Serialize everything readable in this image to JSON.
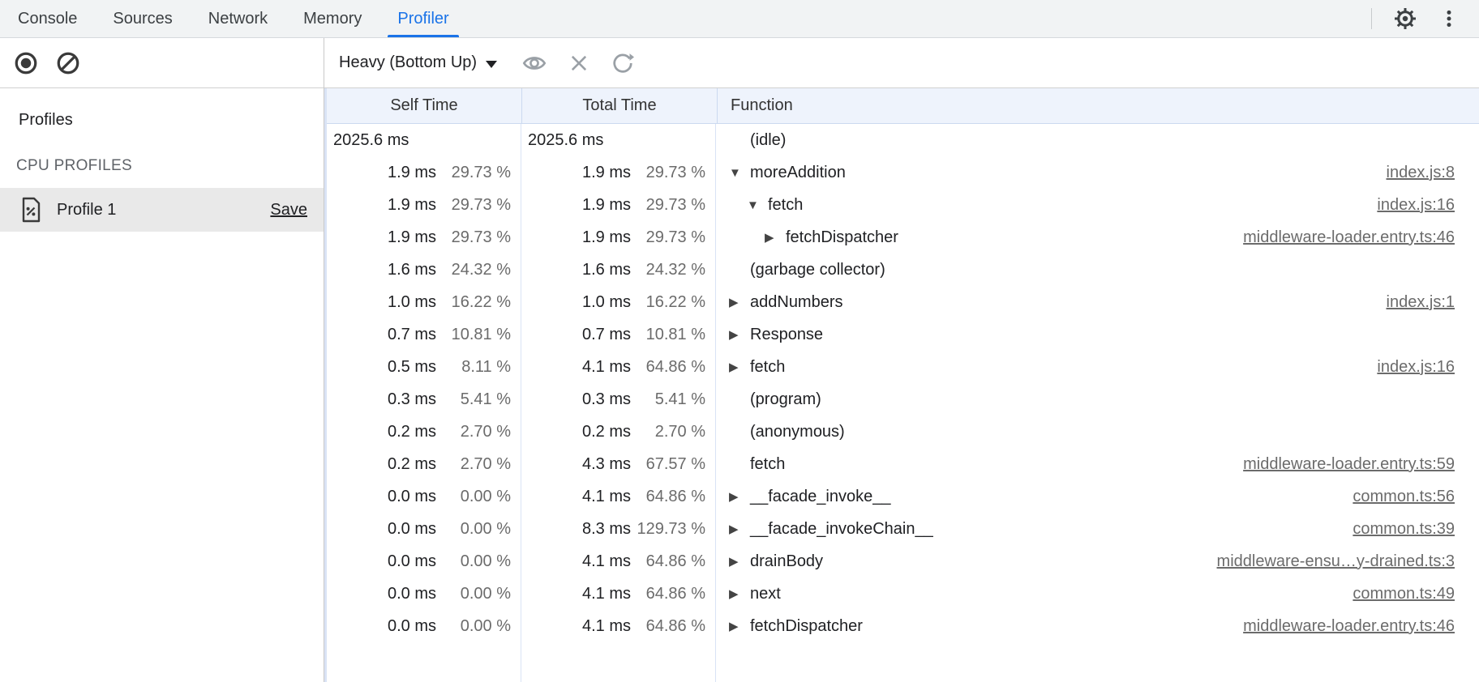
{
  "tabbar": {
    "tabs": [
      {
        "label": "Console",
        "active": false
      },
      {
        "label": "Sources",
        "active": false
      },
      {
        "label": "Network",
        "active": false
      },
      {
        "label": "Memory",
        "active": false
      },
      {
        "label": "Profiler",
        "active": true
      }
    ]
  },
  "sidebar": {
    "profiles_label": "Profiles",
    "section_label": "CPU PROFILES",
    "profile": {
      "name": "Profile 1",
      "save_label": "Save",
      "selected": true
    }
  },
  "toolbar": {
    "view_mode": "Heavy (Bottom Up)"
  },
  "table": {
    "columns": [
      "Self Time",
      "Total Time",
      "Function"
    ],
    "rows": [
      {
        "self_ms": "2025.6 ms",
        "self_pct": "",
        "total_ms": "2025.6 ms",
        "total_pct": "",
        "fn": "(idle)",
        "arrow": "none",
        "level": 0,
        "link": "",
        "wide": true
      },
      {
        "self_ms": "1.9 ms",
        "self_pct": "29.73 %",
        "total_ms": "1.9 ms",
        "total_pct": "29.73 %",
        "fn": "moreAddition",
        "arrow": "expanded",
        "level": 0,
        "link": "index.js:8"
      },
      {
        "self_ms": "1.9 ms",
        "self_pct": "29.73 %",
        "total_ms": "1.9 ms",
        "total_pct": "29.73 %",
        "fn": "fetch",
        "arrow": "expanded",
        "level": 1,
        "link": "index.js:16"
      },
      {
        "self_ms": "1.9 ms",
        "self_pct": "29.73 %",
        "total_ms": "1.9 ms",
        "total_pct": "29.73 %",
        "fn": "fetchDispatcher",
        "arrow": "collapsed",
        "level": 2,
        "link": "middleware-loader.entry.ts:46"
      },
      {
        "self_ms": "1.6 ms",
        "self_pct": "24.32 %",
        "total_ms": "1.6 ms",
        "total_pct": "24.32 %",
        "fn": "(garbage collector)",
        "arrow": "none",
        "level": 0,
        "link": ""
      },
      {
        "self_ms": "1.0 ms",
        "self_pct": "16.22 %",
        "total_ms": "1.0 ms",
        "total_pct": "16.22 %",
        "fn": "addNumbers",
        "arrow": "collapsed",
        "level": 0,
        "link": "index.js:1"
      },
      {
        "self_ms": "0.7 ms",
        "self_pct": "10.81 %",
        "total_ms": "0.7 ms",
        "total_pct": "10.81 %",
        "fn": "Response",
        "arrow": "collapsed",
        "level": 0,
        "link": ""
      },
      {
        "self_ms": "0.5 ms",
        "self_pct": "8.11 %",
        "total_ms": "4.1 ms",
        "total_pct": "64.86 %",
        "fn": "fetch",
        "arrow": "collapsed",
        "level": 0,
        "link": "index.js:16"
      },
      {
        "self_ms": "0.3 ms",
        "self_pct": "5.41 %",
        "total_ms": "0.3 ms",
        "total_pct": "5.41 %",
        "fn": "(program)",
        "arrow": "none",
        "level": 0,
        "link": ""
      },
      {
        "self_ms": "0.2 ms",
        "self_pct": "2.70 %",
        "total_ms": "0.2 ms",
        "total_pct": "2.70 %",
        "fn": "(anonymous)",
        "arrow": "none",
        "level": 0,
        "link": ""
      },
      {
        "self_ms": "0.2 ms",
        "self_pct": "2.70 %",
        "total_ms": "4.3 ms",
        "total_pct": "67.57 %",
        "fn": "fetch",
        "arrow": "none",
        "level": 0,
        "link": "middleware-loader.entry.ts:59"
      },
      {
        "self_ms": "0.0 ms",
        "self_pct": "0.00 %",
        "total_ms": "4.1 ms",
        "total_pct": "64.86 %",
        "fn": "__facade_invoke__",
        "arrow": "collapsed",
        "level": 0,
        "link": "common.ts:56"
      },
      {
        "self_ms": "0.0 ms",
        "self_pct": "0.00 %",
        "total_ms": "8.3 ms",
        "total_pct": "129.73 %",
        "fn": "__facade_invokeChain__",
        "arrow": "collapsed",
        "level": 0,
        "link": "common.ts:39"
      },
      {
        "self_ms": "0.0 ms",
        "self_pct": "0.00 %",
        "total_ms": "4.1 ms",
        "total_pct": "64.86 %",
        "fn": "drainBody",
        "arrow": "collapsed",
        "level": 0,
        "link": "middleware-ensu…y-drained.ts:3"
      },
      {
        "self_ms": "0.0 ms",
        "self_pct": "0.00 %",
        "total_ms": "4.1 ms",
        "total_pct": "64.86 %",
        "fn": "next",
        "arrow": "collapsed",
        "level": 0,
        "link": "common.ts:49"
      },
      {
        "self_ms": "0.0 ms",
        "self_pct": "0.00 %",
        "total_ms": "4.1 ms",
        "total_pct": "64.86 %",
        "fn": "fetchDispatcher",
        "arrow": "collapsed",
        "level": 0,
        "link": "middleware-loader.entry.ts:46"
      }
    ]
  },
  "colors": {
    "accent": "#1a73e8",
    "grid_header_bg": "#eef3fc",
    "grid_line": "#d9e3f5",
    "muted_text": "#6b6b6b",
    "selected_item_bg": "#e9e9e9"
  }
}
